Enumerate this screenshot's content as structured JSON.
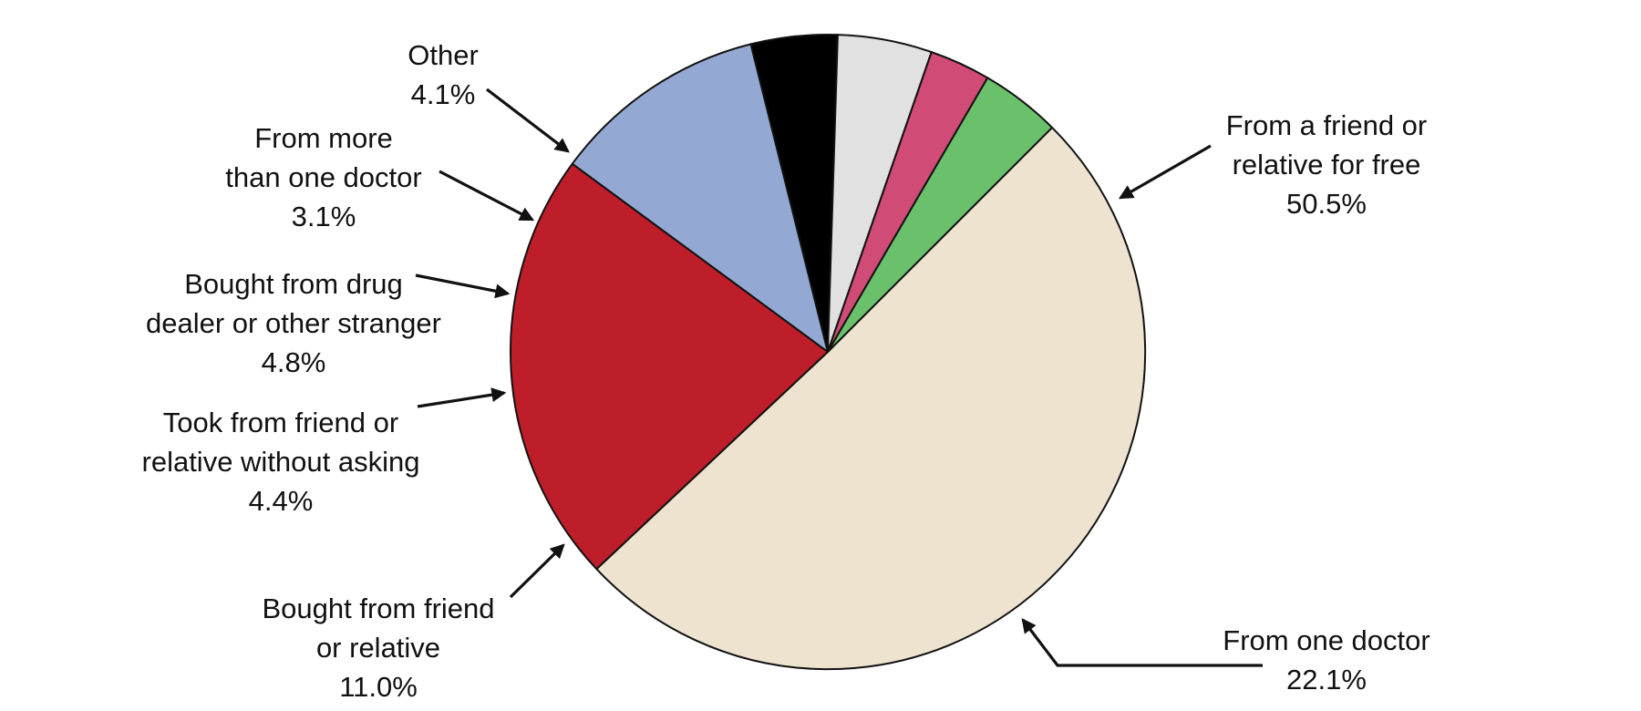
{
  "chart_data": {
    "type": "pie",
    "title": "",
    "start_angle_deg": -45,
    "direction": "clockwise",
    "colors": {
      "edge": "#111111",
      "text": "#111111"
    },
    "slices": [
      {
        "name": "From a friend or relative for free",
        "lines": [
          "From a friend or",
          "relative for free"
        ],
        "value": 50.5,
        "value_label": "50.5%",
        "color": "#EDE3CF"
      },
      {
        "name": "From one doctor",
        "lines": [
          "From one doctor"
        ],
        "value": 22.1,
        "value_label": "22.1%",
        "color": "#BE1E2A"
      },
      {
        "name": "Bought from friend or relative",
        "lines": [
          "Bought from friend",
          "or relative"
        ],
        "value": 11.0,
        "value_label": "11.0%",
        "color": "#93A9D3"
      },
      {
        "name": "Took from friend or relative without asking",
        "lines": [
          "Took from friend or",
          "relative without asking"
        ],
        "value": 4.4,
        "value_label": "4.4%",
        "color": "#000000"
      },
      {
        "name": "Bought from drug dealer or other stranger",
        "lines": [
          "Bought from drug",
          "dealer or other stranger"
        ],
        "value": 4.8,
        "value_label": "4.8%",
        "color": "#E1E1E1"
      },
      {
        "name": "From more than one doctor",
        "lines": [
          "From more",
          "than one doctor"
        ],
        "value": 3.1,
        "value_label": "3.1%",
        "color": "#D04B75"
      },
      {
        "name": "Other",
        "lines": [
          "Other"
        ],
        "value": 4.1,
        "value_label": "4.1%",
        "color": "#6BC16B"
      }
    ]
  }
}
